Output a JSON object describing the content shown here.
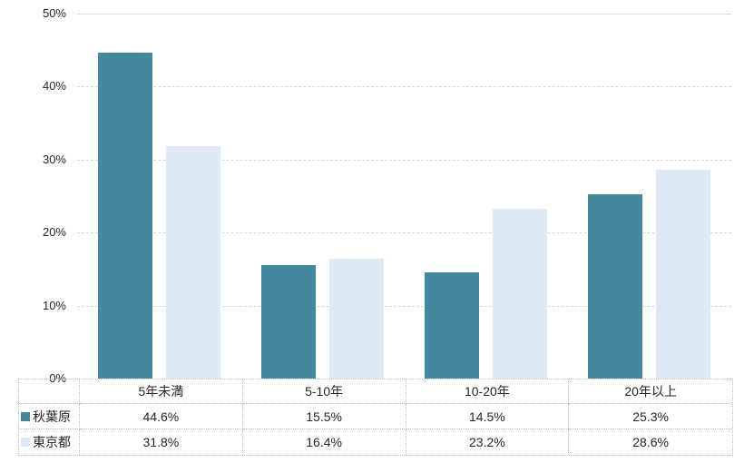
{
  "chart_data": {
    "type": "bar",
    "title": "",
    "xlabel": "",
    "ylabel": "",
    "categories": [
      "5年未満",
      "5-10年",
      "10-20年",
      "20年以上"
    ],
    "series": [
      {
        "name": "秋葉原",
        "color": "#45889E",
        "values": [
          44.6,
          15.5,
          14.5,
          25.3
        ]
      },
      {
        "name": "東京都",
        "color": "#DEE9F4",
        "values": [
          31.8,
          16.4,
          23.2,
          28.6
        ]
      }
    ],
    "value_suffix": "%",
    "ylim": [
      0,
      50
    ],
    "y_tick_step": 10,
    "y_ticks": [
      "0%",
      "10%",
      "20%",
      "30%",
      "40%",
      "50%"
    ],
    "grid": true,
    "gridline_style": "dashed, top boundary solid",
    "legend_position": "table-left-column"
  },
  "colors": {
    "background": "#FFFFFF",
    "gridline": "#D9D9D9",
    "table_border": "#BDBDBD",
    "text": "#262626"
  }
}
